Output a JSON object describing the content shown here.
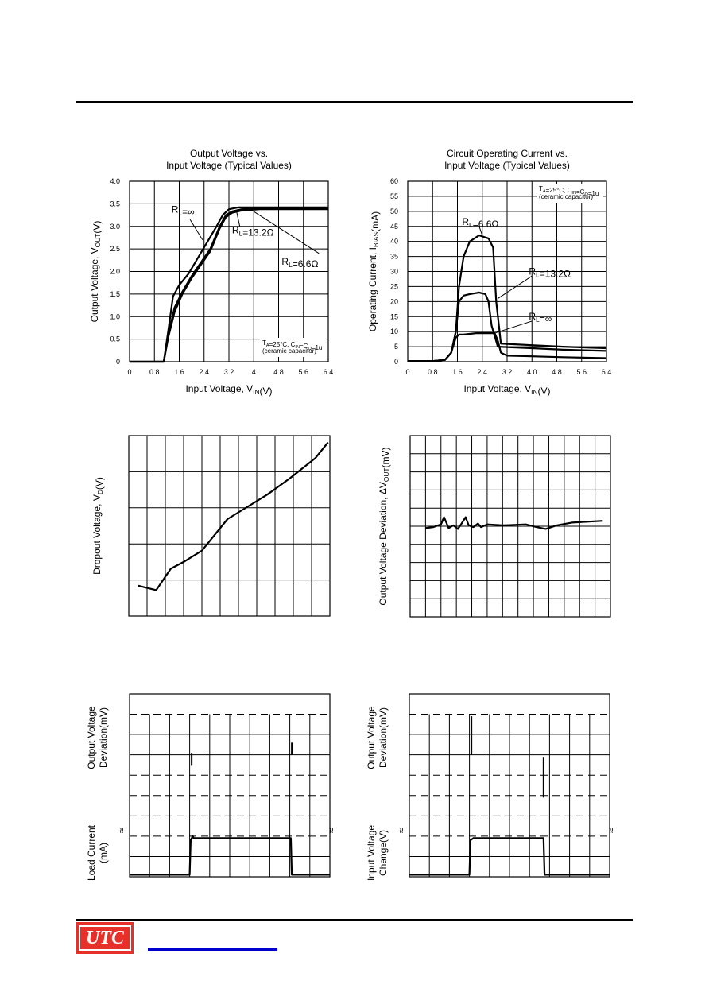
{
  "footer": {
    "logo_text": "UTC",
    "brand_color": "#e8302a",
    "link_color": "#0000cc"
  },
  "chart_data": [
    {
      "id": "c1",
      "type": "line",
      "title": [
        "Output Voltage vs.",
        "Input Voltage (Typical Values)"
      ],
      "xlabel": "Input Voltage, V_IN(V)",
      "ylabel": "Output Voltage, V_OUT(V)",
      "xlim": [
        0,
        6.4
      ],
      "ylim": [
        0,
        4.0
      ],
      "xticks": [
        "0",
        "0.8",
        "1.6",
        "2.4",
        "3.2",
        "4",
        "4.8",
        "5.6",
        "6.4"
      ],
      "yticks": [
        "0",
        "0.5",
        "1.0",
        "1.5",
        "2.0",
        "2.5",
        "3.0",
        "3.5",
        "4.0"
      ],
      "grid": true,
      "note": [
        "T_A=25°C, C_IN=C_O=1u",
        "(ceramic capacitor)"
      ],
      "series": [
        {
          "name": "R_L=∞",
          "x": [
            0,
            1.1,
            1.25,
            1.4,
            1.6,
            1.9,
            2.2,
            2.5,
            2.8,
            3.0,
            3.2,
            3.5,
            4.0,
            5.0,
            6.4
          ],
          "y": [
            0,
            0,
            0.7,
            1.45,
            1.7,
            1.95,
            2.3,
            2.65,
            3.0,
            3.25,
            3.38,
            3.42,
            3.42,
            3.42,
            3.42
          ]
        },
        {
          "name": "R_L=13.2Ω",
          "x": [
            0,
            1.1,
            1.25,
            1.45,
            1.7,
            2.0,
            2.3,
            2.6,
            2.9,
            3.1,
            3.3,
            3.6,
            4.2,
            5.0,
            6.4
          ],
          "y": [
            0,
            0,
            0.6,
            1.2,
            1.55,
            1.9,
            2.2,
            2.5,
            3.0,
            3.25,
            3.33,
            3.38,
            3.4,
            3.4,
            3.4
          ]
        },
        {
          "name": "R_L=6.6Ω",
          "x": [
            0,
            1.1,
            1.25,
            1.45,
            1.7,
            2.0,
            2.3,
            2.6,
            2.9,
            3.1,
            3.3,
            3.6,
            4.2,
            5.0,
            6.4
          ],
          "y": [
            0,
            0,
            0.55,
            1.1,
            1.5,
            1.85,
            2.15,
            2.45,
            2.95,
            3.2,
            3.3,
            3.35,
            3.38,
            3.38,
            3.38
          ]
        }
      ],
      "labels": [
        {
          "text": "R_L=∞",
          "x": 1.35,
          "y": 3.3
        },
        {
          "text": "R_L=13.2Ω",
          "x": 3.3,
          "y": 2.85
        },
        {
          "text": "R_L=6.6Ω",
          "x": 4.9,
          "y": 2.15
        }
      ]
    },
    {
      "id": "c2",
      "type": "line",
      "title": [
        "Circuit Operating Current vs.",
        "Input Voltage (Typical Values)"
      ],
      "xlabel": "Input Voltage, V_IN(V)",
      "ylabel": "Operating Current, I_BIAS(mA)",
      "xlim": [
        0,
        6.4
      ],
      "ylim": [
        0,
        60
      ],
      "xticks": [
        "0",
        "0.8",
        "1.6",
        "2.4",
        "3.2",
        "4.0",
        "4.8",
        "5.6",
        "6.4"
      ],
      "yticks": [
        "0",
        "5",
        "10",
        "15",
        "20",
        "25",
        "30",
        "35",
        "40",
        "45",
        "50",
        "55",
        "60"
      ],
      "grid": true,
      "note": [
        "T_A=25°C, C_IN=C_O=1u",
        "(ceramic capacitor)"
      ],
      "series": [
        {
          "name": "R_L=6.6Ω",
          "x": [
            0,
            0.8,
            1.2,
            1.4,
            1.55,
            1.65,
            1.8,
            2.0,
            2.3,
            2.6,
            2.75,
            2.85,
            3.0,
            4.0,
            5.0,
            6.4
          ],
          "y": [
            0.2,
            0.2,
            0.6,
            3,
            10,
            25,
            35,
            40,
            42,
            41,
            38,
            20,
            6,
            5.5,
            5,
            4.5
          ]
        },
        {
          "name": "R_L=13.2Ω",
          "x": [
            0,
            0.8,
            1.2,
            1.4,
            1.55,
            1.65,
            1.8,
            2.0,
            2.3,
            2.5,
            2.6,
            2.7,
            2.9,
            4.0,
            5.0,
            6.4
          ],
          "y": [
            0.2,
            0.2,
            0.6,
            3,
            10,
            20,
            22,
            22.5,
            23,
            22.5,
            20,
            12,
            5,
            4.5,
            4,
            3.6
          ]
        },
        {
          "name": "R_L=∞",
          "x": [
            0,
            0.8,
            1.2,
            1.4,
            1.55,
            1.65,
            1.8,
            2.2,
            2.6,
            2.8,
            2.9,
            3.0,
            3.2,
            4.0,
            5.0,
            6.4
          ],
          "y": [
            0.2,
            0.2,
            0.6,
            3,
            8,
            9,
            9,
            9.5,
            9.5,
            9.5,
            7,
            3,
            2,
            1.8,
            1.5,
            1.2
          ]
        }
      ],
      "labels": [
        {
          "text": "R_L=6.6Ω",
          "x": 1.75,
          "y": 45.5
        },
        {
          "text": "R_L=13.2Ω",
          "x": 3.9,
          "y": 29
        },
        {
          "text": "R_L=∞",
          "x": 3.9,
          "y": 14
        }
      ]
    },
    {
      "id": "c3",
      "type": "line",
      "title": [],
      "xlabel": "",
      "ylabel": "Dropout Voltage, V_D(V)",
      "xlim": [
        0,
        11
      ],
      "ylim": [
        0,
        8
      ],
      "xticks": [],
      "yticks": [],
      "grid": true,
      "note": [],
      "series": [
        {
          "name": "",
          "x": [
            0.5,
            1.5,
            2.3,
            3.0,
            4.0,
            5.4,
            6.6,
            7.6,
            8.8,
            10.2,
            10.9
          ],
          "y": [
            1.35,
            1.15,
            2.1,
            2.4,
            2.9,
            4.3,
            4.9,
            5.4,
            6.1,
            7.0,
            7.7
          ]
        }
      ],
      "labels": []
    },
    {
      "id": "c4",
      "type": "line",
      "title": [],
      "xlabel": "",
      "ylabel": "Output Voltage Deviation, ΔV_OUT(mV)",
      "xlim": [
        0,
        13
      ],
      "ylim": [
        0,
        10
      ],
      "xticks": [],
      "yticks": [],
      "grid": true,
      "note": [],
      "series": [
        {
          "name": "",
          "x": [
            1.0,
            1.5,
            2.0,
            2.2,
            2.5,
            2.8,
            3.1,
            3.3,
            3.6,
            3.8,
            4.1,
            4.4,
            4.6,
            5.0,
            6.0,
            7.5,
            8.2,
            8.8,
            9.5,
            10.5,
            11.5,
            12.5
          ],
          "y": [
            4.9,
            4.95,
            5.1,
            5.5,
            4.9,
            5.05,
            4.85,
            5.1,
            5.5,
            5.05,
            4.95,
            5.15,
            4.95,
            5.1,
            5.05,
            5.1,
            4.95,
            4.85,
            5.05,
            5.2,
            5.25,
            5.3
          ]
        }
      ],
      "labels": []
    },
    {
      "id": "c5",
      "type": "line",
      "title": [],
      "xlabel": "",
      "ylabel_top": [
        "Output Voltage",
        "Deviation(mV)"
      ],
      "ylabel_bottom": [
        "Load Current",
        "(mA)"
      ],
      "xlim": [
        0,
        10
      ],
      "ylim": [
        0,
        9
      ],
      "grid": true,
      "series": [
        {
          "name": "",
          "x": [
            0,
            3.0,
            3.05,
            3.15,
            3.2,
            8.0,
            8.05,
            8.1,
            10
          ],
          "y": [
            0.1,
            0.1,
            1.8,
            2.0,
            1.9,
            1.9,
            1.9,
            0.1,
            0.1
          ]
        }
      ],
      "spikes": [
        {
          "x": 3.1,
          "y0": 5.5,
          "y1": 6.1
        },
        {
          "x": 8.1,
          "y0": 6.0,
          "y1": 6.6
        }
      ],
      "labels": []
    },
    {
      "id": "c6",
      "type": "line",
      "title": [],
      "xlabel": "",
      "ylabel_top": [
        "Output Voltage",
        "Deviation(mV)"
      ],
      "ylabel_bottom": [
        "Input Voltage",
        "Change(V)"
      ],
      "xlim": [
        0,
        10
      ],
      "ylim": [
        0,
        9
      ],
      "grid": true,
      "series": [
        {
          "name": "",
          "x": [
            0,
            3.0,
            3.05,
            3.2,
            6.6,
            6.7,
            6.75,
            10
          ],
          "y": [
            0.1,
            0.1,
            1.8,
            1.9,
            1.9,
            1.9,
            0.1,
            0.1
          ]
        }
      ],
      "spikes": [
        {
          "x": 3.1,
          "y0": 6.0,
          "y1": 7.9
        },
        {
          "x": 6.7,
          "y0": 3.9,
          "y1": 5.9
        }
      ],
      "labels": []
    }
  ]
}
